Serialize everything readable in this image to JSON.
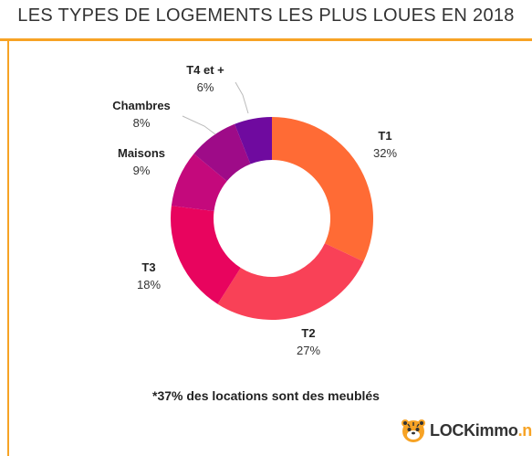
{
  "header": {
    "title": "LES TYPES DE LOGEMENTS LES PLUS LOUES EN 2018"
  },
  "chart_data": {
    "type": "pie",
    "subtype": "donut",
    "title": "LES TYPES DE LOGEMENTS LES PLUS LOUES EN 2018",
    "legend": "none",
    "slices": [
      {
        "label": "T1",
        "value": 32,
        "display": "32%",
        "color": "#ff6b35"
      },
      {
        "label": "T2",
        "value": 27,
        "display": "27%",
        "color": "#f94157"
      },
      {
        "label": "T3",
        "value": 18,
        "display": "18%",
        "color": "#e8045e"
      },
      {
        "label": "Maisons",
        "value": 9,
        "display": "9%",
        "color": "#c4097c"
      },
      {
        "label": "Chambres",
        "value": 8,
        "display": "8%",
        "color": "#9e0b88"
      },
      {
        "label": "T4 et +",
        "value": 6,
        "display": "6%",
        "color": "#6f0a9f"
      }
    ]
  },
  "footer": {
    "note": "*37% des locations sont des meublés",
    "logo_main": "LOCKimmo",
    "logo_suffix": ".net",
    "accent_color": "#f7a325",
    "logo_icon": "tiger-mascot-icon"
  }
}
